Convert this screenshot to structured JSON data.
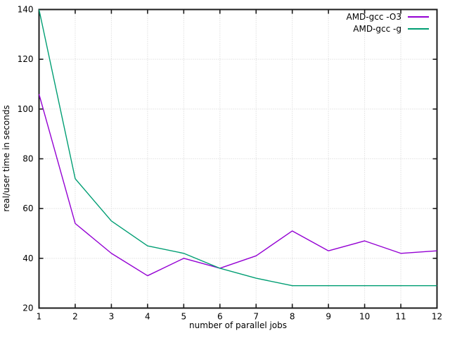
{
  "chart_data": {
    "type": "line",
    "title": "",
    "xlabel": "number of parallel jobs",
    "ylabel": "real/user time in seconds",
    "x": [
      1,
      2,
      3,
      4,
      5,
      6,
      7,
      8,
      9,
      10,
      11,
      12
    ],
    "xlim": [
      1,
      12
    ],
    "ylim": [
      20,
      140
    ],
    "xticks": [
      1,
      2,
      3,
      4,
      5,
      6,
      7,
      8,
      9,
      10,
      11,
      12
    ],
    "yticks": [
      20,
      40,
      60,
      80,
      100,
      120,
      140
    ],
    "grid": true,
    "legend_position": "top-right-inside",
    "series": [
      {
        "name": "AMD-gcc -O3",
        "color": "#9400d3",
        "values": [
          106,
          54,
          42,
          33,
          40,
          36,
          41,
          51,
          43,
          47,
          42,
          43
        ]
      },
      {
        "name": "AMD-gcc -g",
        "color": "#009e73",
        "values": [
          140,
          72,
          55,
          45,
          42,
          36,
          32,
          29,
          29,
          29,
          29,
          29
        ]
      }
    ]
  },
  "colors": {
    "background": "#ffffff",
    "border": "#1c1c1c",
    "grid": "#d0d0d0",
    "text": "#000000"
  }
}
